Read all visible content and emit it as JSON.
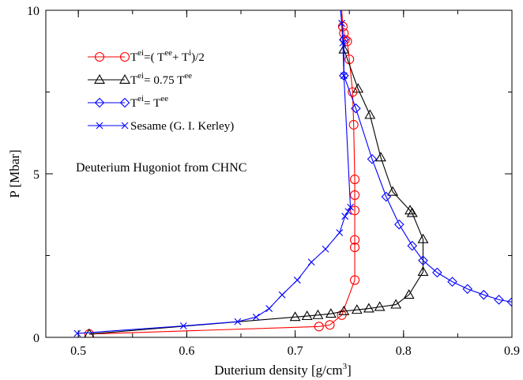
{
  "chart_data": {
    "type": "line",
    "title": "",
    "annotation": "Deuterium Hugoniot from CHNC",
    "xlabel": "Duterium density [g/cm",
    "xlabel_sup": "3",
    "xlabel_end": "]",
    "ylabel": "P [Mbar]",
    "xlim": [
      0.47,
      0.9
    ],
    "ylim": [
      0,
      10
    ],
    "x_ticks": [
      0.5,
      0.6,
      0.7,
      0.8,
      0.9
    ],
    "x_tick_labels": [
      "0.5",
      "0.6",
      "0.7",
      "0.8",
      "0.9"
    ],
    "y_ticks": [
      0,
      5,
      10
    ],
    "y_tick_labels": [
      "0",
      "5",
      "10"
    ],
    "grid": false,
    "legend_position": "top-left",
    "legend": [
      {
        "parts": [
          {
            "t": "T"
          },
          {
            "t": "ei",
            "sup": true
          },
          {
            "t": "=( T"
          },
          {
            "t": "ee",
            "sup": true
          },
          {
            "t": "+ T"
          },
          {
            "t": "i",
            "sup": true
          },
          {
            "t": ")/2"
          }
        ]
      },
      {
        "parts": [
          {
            "t": "T"
          },
          {
            "t": "ei",
            "sup": true
          },
          {
            "t": "= 0.75 T"
          },
          {
            "t": "ee",
            "sup": true
          }
        ]
      },
      {
        "parts": [
          {
            "t": "T"
          },
          {
            "t": "ei",
            "sup": true
          },
          {
            "t": "= T"
          },
          {
            "t": "ee",
            "sup": true
          }
        ]
      },
      {
        "parts": [
          {
            "t": "Sesame (G. I. Kerley)"
          }
        ]
      }
    ],
    "series": [
      {
        "marker": "circle",
        "color": "#ff0000",
        "x": [
          0.51,
          0.722,
          0.732,
          0.743,
          0.755,
          0.755,
          0.755,
          0.755,
          0.755,
          0.755,
          0.754,
          0.753,
          0.75,
          0.748,
          0.746,
          0.745,
          0.744,
          0.743
        ],
        "y": [
          0.1,
          0.33,
          0.38,
          0.68,
          1.75,
          2.75,
          2.98,
          3.88,
          4.35,
          4.83,
          6.5,
          7.5,
          8.5,
          9.05,
          9.1,
          9.3,
          9.5,
          10.0
        ]
      },
      {
        "marker": "triangle",
        "color": "#000000",
        "x": [
          0.51,
          0.7,
          0.711,
          0.721,
          0.733,
          0.745,
          0.757,
          0.768,
          0.778,
          0.793,
          0.805,
          0.818,
          0.818,
          0.808,
          0.806,
          0.79,
          0.779,
          0.769,
          0.758,
          0.745,
          0.742
        ],
        "y": [
          0.1,
          0.62,
          0.65,
          0.68,
          0.72,
          0.8,
          0.84,
          0.88,
          0.93,
          1.0,
          1.3,
          2.0,
          3.0,
          3.8,
          3.88,
          4.45,
          5.5,
          6.8,
          7.6,
          8.8,
          10.0
        ]
      },
      {
        "marker": "diamond",
        "color": "#0000ff",
        "x": [
          0.745,
          0.745,
          0.756,
          0.771,
          0.784,
          0.796,
          0.808,
          0.818,
          0.831,
          0.845,
          0.859,
          0.874,
          0.888,
          0.9
        ],
        "y": [
          9.1,
          8.0,
          7.0,
          5.45,
          4.3,
          3.45,
          2.8,
          2.35,
          1.98,
          1.7,
          1.48,
          1.3,
          1.15,
          1.08
        ]
      },
      {
        "marker": "x",
        "color": "#0000ff",
        "x": [
          0.499,
          0.597,
          0.647,
          0.664,
          0.676,
          0.688,
          0.702,
          0.715,
          0.728,
          0.741,
          0.746,
          0.749,
          0.751,
          0.745,
          0.744,
          0.743,
          0.742
        ],
        "y": [
          0.12,
          0.35,
          0.48,
          0.62,
          0.88,
          1.3,
          1.75,
          2.3,
          2.7,
          3.2,
          3.7,
          3.85,
          3.98,
          8.0,
          9.0,
          9.6,
          10.0
        ]
      }
    ]
  }
}
